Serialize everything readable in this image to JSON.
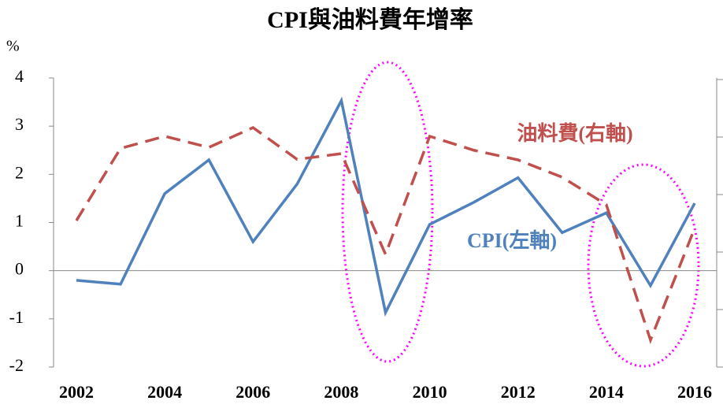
{
  "chart_data": {
    "type": "line",
    "title": "CPI與油料費年增率",
    "y_unit": "%",
    "x": [
      2002,
      2003,
      2004,
      2005,
      2006,
      2007,
      2008,
      2009,
      2010,
      2011,
      2012,
      2013,
      2014,
      2015,
      2016
    ],
    "xlim": [
      2002,
      2016
    ],
    "xticks": [
      2002,
      2004,
      2006,
      2008,
      2010,
      2012,
      2014,
      2016
    ],
    "ylim": [
      -2,
      4
    ],
    "yticks": [
      -2,
      -1,
      0,
      1,
      2,
      3,
      4
    ],
    "series": [
      {
        "name": "CPI(左軸)",
        "color": "#4f81bd",
        "dash": false,
        "values": [
          -0.2,
          -0.28,
          1.6,
          2.3,
          0.6,
          1.8,
          3.53,
          -0.87,
          0.96,
          1.42,
          1.93,
          0.79,
          1.2,
          -0.31,
          1.4
        ]
      },
      {
        "name": "油料費(右軸)",
        "color": "#c0504d",
        "dash": true,
        "values": [
          1.04,
          2.54,
          2.79,
          2.56,
          2.97,
          2.31,
          2.43,
          0.34,
          2.79,
          2.5,
          2.3,
          1.94,
          1.37,
          -1.44,
          0.88
        ]
      }
    ]
  }
}
